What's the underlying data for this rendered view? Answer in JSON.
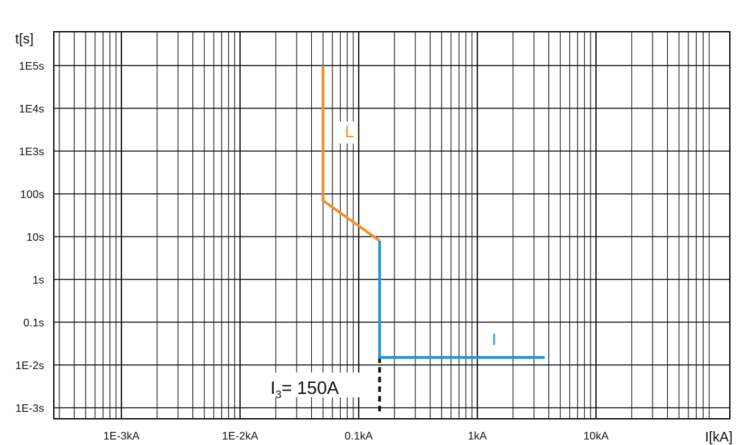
{
  "chart_data": {
    "type": "line",
    "x_scale": "log",
    "y_scale": "log",
    "xlabel": "I[kA]",
    "ylabel": "t[s]",
    "xlim": [
      0.0005,
      12
    ],
    "ylim": [
      0.0007,
      1000000
    ],
    "grid": true,
    "x_ticks": [
      {
        "value": 0.001,
        "label": "1E-3kA"
      },
      {
        "value": 0.01,
        "label": "1E-2kA"
      },
      {
        "value": 0.1,
        "label": "0.1kA"
      },
      {
        "value": 1,
        "label": "1kA"
      },
      {
        "value": 10,
        "label": "10kA"
      }
    ],
    "y_ticks": [
      {
        "value": 100000,
        "label": "1E5s"
      },
      {
        "value": 10000,
        "label": "1E4s"
      },
      {
        "value": 1000,
        "label": "1E3s"
      },
      {
        "value": 100,
        "label": "100s"
      },
      {
        "value": 10,
        "label": "10s"
      },
      {
        "value": 1,
        "label": "1s"
      },
      {
        "value": 0.1,
        "label": "0.1s"
      },
      {
        "value": 0.01,
        "label": "1E-2s"
      },
      {
        "value": 0.001,
        "label": "1E-3s"
      }
    ],
    "series": [
      {
        "name": "L",
        "color": "#f0912a",
        "points": [
          [
            0.05,
            100000
          ],
          [
            0.05,
            70
          ],
          [
            0.15,
            8
          ]
        ]
      },
      {
        "name": "I",
        "color": "#2b8fd6",
        "points": [
          [
            0.15,
            8
          ],
          [
            0.15,
            0.015
          ],
          [
            3.7,
            0.015
          ]
        ]
      }
    ],
    "annotations": [
      {
        "text_main": "I",
        "text_sub": "3",
        "text_rest": "= 150A",
        "x": 0.15,
        "y_from": 0.015,
        "y_to": 0.001,
        "style": "dashed-black"
      }
    ]
  }
}
